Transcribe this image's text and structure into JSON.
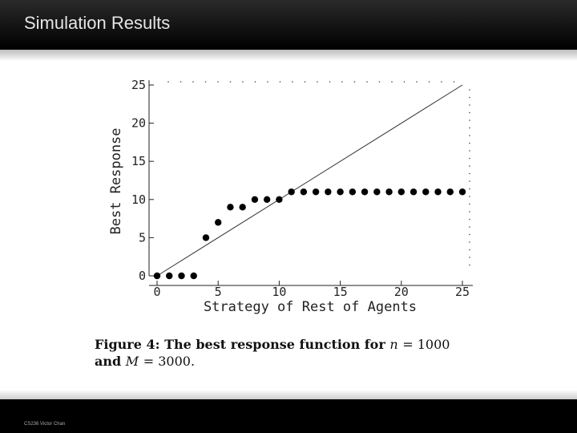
{
  "slide": {
    "title": "Simulation Results",
    "footer": "CS236 Victor Chan"
  },
  "caption": {
    "label": "Figure 4:",
    "text1": "The best response function for",
    "var_n": "n",
    "eq_n": "= 1000",
    "and": "and",
    "var_M": "M",
    "eq_M": "= 3000."
  },
  "chart_data": {
    "type": "scatter",
    "xlabel": "Strategy of Rest of Agents",
    "ylabel": "Best Response",
    "xlim": [
      0,
      25
    ],
    "ylim": [
      0,
      25
    ],
    "xticks": [
      0,
      5,
      10,
      15,
      20,
      25
    ],
    "yticks": [
      0,
      5,
      10,
      15,
      20,
      25
    ],
    "grid": false,
    "series": [
      {
        "x": [
          0,
          1,
          2,
          3,
          4,
          5,
          6,
          7,
          8,
          9,
          10,
          11,
          12,
          13,
          14,
          15,
          16,
          17,
          18,
          19,
          20,
          21,
          22,
          23,
          24,
          25
        ],
        "y": [
          0,
          0,
          0,
          0,
          5,
          7,
          9,
          9,
          10,
          10,
          10,
          11,
          11,
          11,
          11,
          11,
          11,
          11,
          11,
          11,
          11,
          11,
          11,
          11,
          11,
          11
        ]
      }
    ],
    "reference_line": {
      "x": [
        0,
        25
      ],
      "y": [
        0,
        25
      ]
    }
  }
}
